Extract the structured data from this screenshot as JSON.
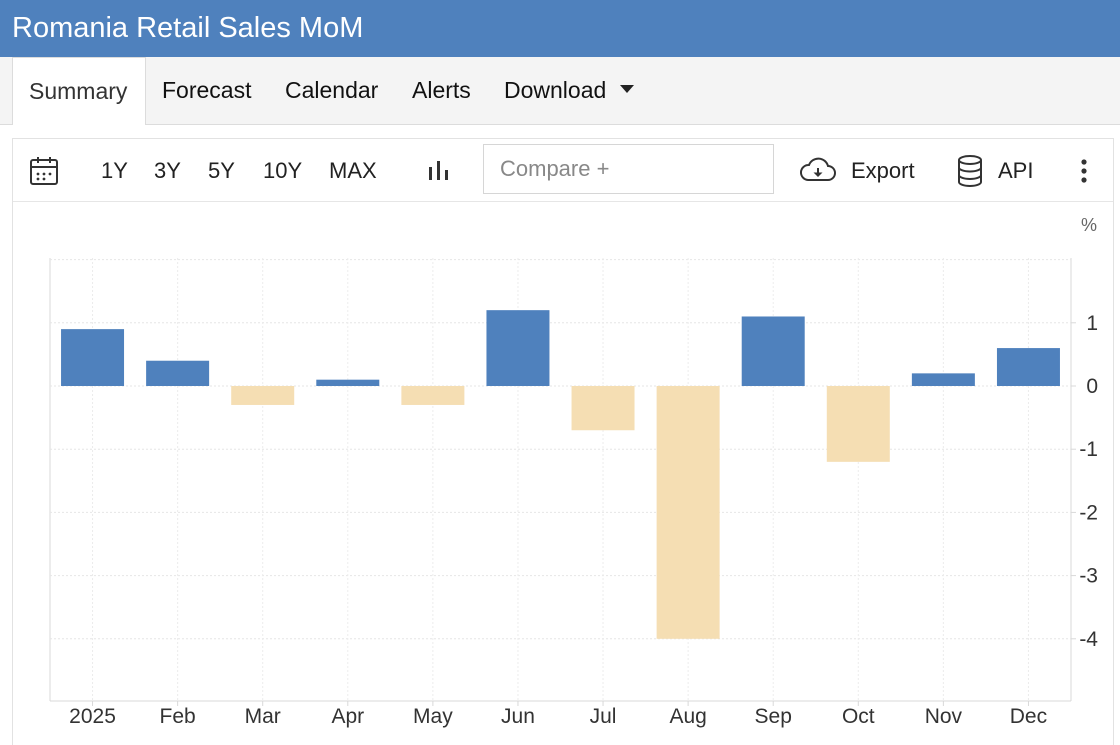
{
  "header": {
    "title": "Romania Retail Sales MoM"
  },
  "tabs": [
    {
      "label": "Summary"
    },
    {
      "label": "Forecast"
    },
    {
      "label": "Calendar"
    },
    {
      "label": "Alerts"
    },
    {
      "label": "Download"
    }
  ],
  "toolbar": {
    "ranges": [
      "1Y",
      "3Y",
      "5Y",
      "10Y",
      "MAX"
    ],
    "compare_placeholder": "Compare +",
    "export_label": "Export",
    "api_label": "API",
    "icons": [
      "calendar-icon",
      "bar-chart-icon",
      "cloud-download-icon",
      "database-icon",
      "more-vertical-icon"
    ]
  },
  "chart_data": {
    "type": "bar",
    "unit": "%",
    "categories": [
      "2025",
      "Feb",
      "Mar",
      "Apr",
      "May",
      "Jun",
      "Jul",
      "Aug",
      "Sep",
      "Oct",
      "Nov",
      "Dec"
    ],
    "values": [
      0.9,
      0.4,
      -0.3,
      0.1,
      -0.3,
      1.2,
      -0.7,
      -4.0,
      1.1,
      -1.2,
      0.2,
      0.6
    ],
    "ylim": [
      -5,
      2
    ],
    "yticks": [
      1,
      0,
      -1,
      -2,
      -3,
      -4
    ],
    "y_axis_position": "right",
    "grid": true,
    "colors": {
      "positive": "#4f81bd",
      "negative": "#f5deb3"
    }
  }
}
